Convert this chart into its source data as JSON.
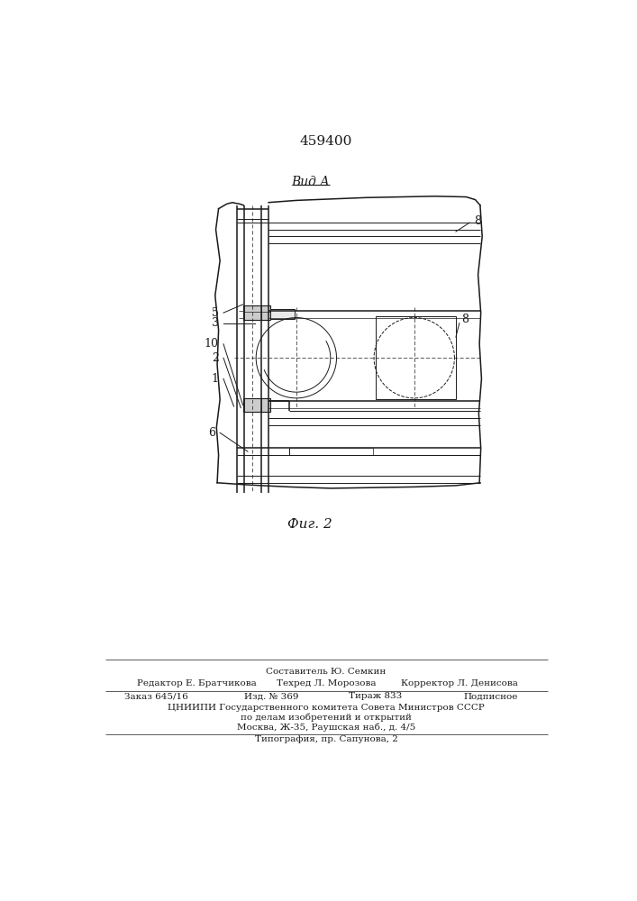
{
  "patent_number": "459400",
  "view_label": "Вид А",
  "fig_label": "Фиг. 2",
  "bg_color": "#ffffff",
  "line_color": "#1a1a1a",
  "footer_line1": "Составитель Ю. Семкин",
  "footer_editor": "Редактор Е. Братчикова",
  "footer_tech": "Техред Л. Морозова",
  "footer_corr": "Корректор Л. Денисова",
  "footer_order": "Заказ 645/16",
  "footer_izd": "Изд. № 369",
  "footer_tirazh": "Тираж 833",
  "footer_podp": "Подписное",
  "footer_cniip1": "ЦНИИПИ Государственного комитета Совета Министров СССР",
  "footer_cniip2": "по делам изобретений и открытий",
  "footer_moscow": "Москва, Ж-35, Раушская наб., д. 4/5",
  "footer_tip": "Типография, пр. Сапунова, 2"
}
